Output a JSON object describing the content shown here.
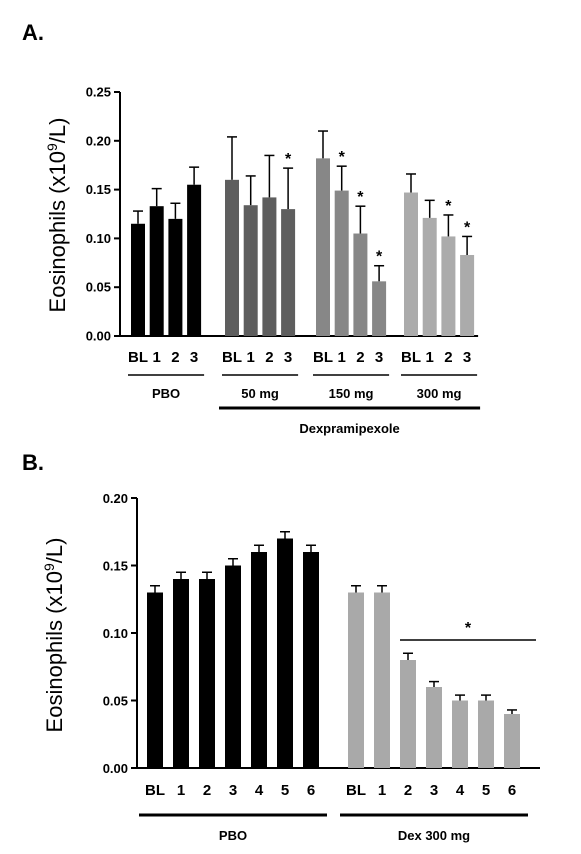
{
  "chart_data": [
    {
      "panel": "A.",
      "type": "bar",
      "ylabel": "Eosinophils (x10",
      "ylabel_sup": "9",
      "ylabel_end": "/L)",
      "ylim": [
        0,
        0.25
      ],
      "yticks": [
        "0.00",
        "0.05",
        "0.10",
        "0.15",
        "0.20",
        "0.25"
      ],
      "categories": [
        "BL",
        "1",
        "2",
        "3"
      ],
      "group_overlabel": "Dexpramipexole",
      "groups": [
        {
          "name": "PBO",
          "color": "#000000",
          "values": [
            0.115,
            0.133,
            0.12,
            0.155
          ],
          "errors": [
            0.013,
            0.018,
            0.016,
            0.018
          ],
          "significant": [
            false,
            false,
            false,
            false
          ]
        },
        {
          "name": "50 mg",
          "color": "#5e5e5e",
          "values": [
            0.16,
            0.134,
            0.142,
            0.13
          ],
          "errors": [
            0.044,
            0.03,
            0.043,
            0.042
          ],
          "significant": [
            false,
            false,
            false,
            true
          ]
        },
        {
          "name": "150 mg",
          "color": "#878787",
          "values": [
            0.182,
            0.149,
            0.105,
            0.056
          ],
          "errors": [
            0.028,
            0.025,
            0.028,
            0.016
          ],
          "significant": [
            false,
            true,
            true,
            true
          ]
        },
        {
          "name": "300 mg",
          "color": "#ababab",
          "values": [
            0.147,
            0.121,
            0.102,
            0.083
          ],
          "errors": [
            0.019,
            0.018,
            0.022,
            0.019
          ],
          "significant": [
            false,
            false,
            true,
            true
          ]
        }
      ],
      "star_symbol": "*"
    },
    {
      "panel": "B.",
      "type": "bar",
      "ylabel": "Eosinophils (x10",
      "ylabel_sup": "9",
      "ylabel_end": "/L)",
      "ylim": [
        0,
        0.2
      ],
      "yticks": [
        "0.00",
        "0.05",
        "0.10",
        "0.15",
        "0.20"
      ],
      "groups": [
        {
          "name": "PBO",
          "color": "#000000",
          "categories": [
            "BL",
            "1",
            "2",
            "3",
            "4",
            "5",
            "6"
          ],
          "values": [
            0.13,
            0.14,
            0.14,
            0.15,
            0.16,
            0.17,
            0.16
          ],
          "errors": [
            0.005,
            0.005,
            0.005,
            0.005,
            0.005,
            0.005,
            0.005
          ]
        },
        {
          "name": "Dex 300 mg",
          "color": "#a9a9a9",
          "categories": [
            "BL",
            "1",
            "2",
            "3",
            "4",
            "5",
            "6"
          ],
          "values": [
            0.13,
            0.13,
            0.08,
            0.06,
            0.05,
            0.05,
            0.04
          ],
          "errors": [
            0.005,
            0.005,
            0.005,
            0.004,
            0.004,
            0.004,
            0.003
          ]
        }
      ],
      "significance_bracket": {
        "label": "*",
        "from_bar": 2,
        "to_bar": 6,
        "group": 1
      }
    }
  ]
}
